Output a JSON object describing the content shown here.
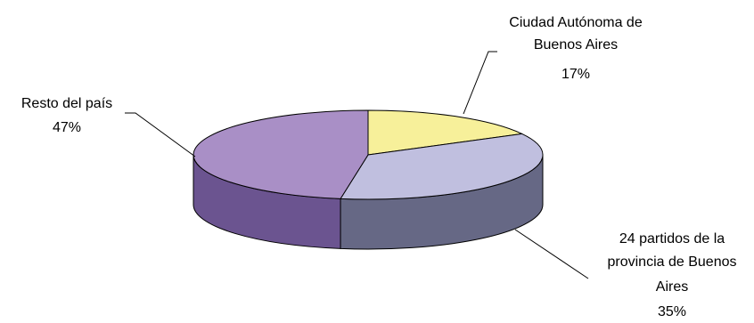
{
  "chart_data": {
    "type": "pie",
    "style": "3d",
    "slices": [
      {
        "label_lines": [
          "Ciudad Autónoma de",
          "Buenos Aires"
        ],
        "percent_label": "17%",
        "value": 17,
        "color": "#f7f09a",
        "side_color": "#b7b35a"
      },
      {
        "label_lines": [
          "24 partidos de la",
          "provincia de Buenos",
          "Aires"
        ],
        "percent_label": "35%",
        "value": 35,
        "color": "#c0bfdf",
        "side_color": "#666885"
      },
      {
        "label_lines": [
          "Resto del país"
        ],
        "percent_label": "47%",
        "value": 47,
        "color": "#a98fc6",
        "side_color": "#6b5490"
      }
    ]
  }
}
